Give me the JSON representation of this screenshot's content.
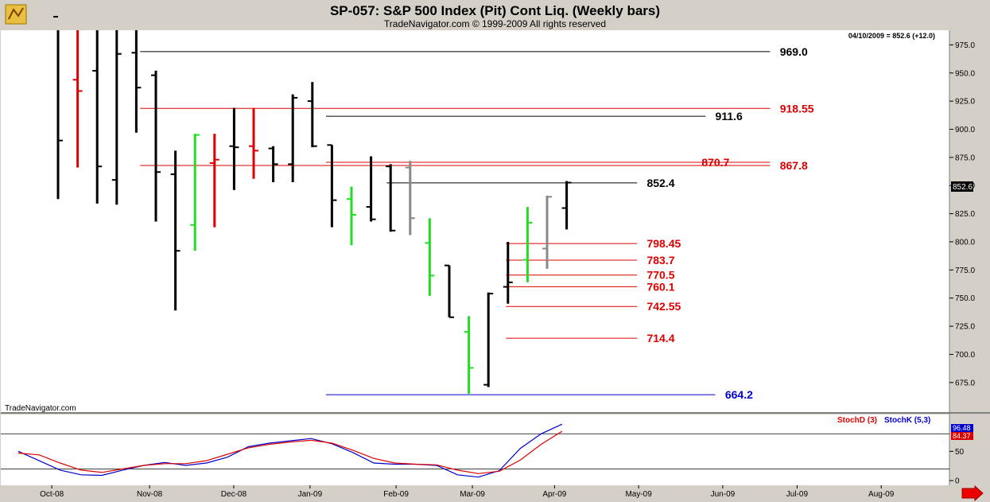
{
  "header": {
    "title": "SP-057:  S&P 500 Index (Pit) Cont Liq.  (Weekly bars)",
    "subtitle": "TradeNavigator.com © 1999-2009 All rights reserved"
  },
  "info_readout": "04/10/2009 = 852.6 (+12.0)",
  "watermark": "TradeNavigator.com",
  "last_price_tag": "852.6",
  "colors": {
    "up_bar": "#22dd22",
    "down_bar": "#e00000",
    "gray_bar": "#888888",
    "normal_bar": "#000000",
    "support_red": "#dd0000",
    "support_blue": "#0000cc",
    "stoch_d": "#dd0000",
    "stoch_k": "#0000cc"
  },
  "chart_data": [
    {
      "type": "ohlc",
      "title": "SP-057:  S&P 500 Index (Pit) Cont Liq.  (Weekly bars)",
      "ylim": [
        648,
        988
      ],
      "yticks": [
        675,
        700,
        725,
        750,
        775,
        800,
        825,
        850,
        875,
        900,
        925,
        950,
        975
      ],
      "ytick_labels": [
        "675.0",
        "700.0",
        "725.0",
        "750.0",
        "775.0",
        "800.0",
        "825.0",
        "850.0",
        "875.0",
        "900.0",
        "925.0",
        "950.0",
        "975.0"
      ],
      "xticks": [
        {
          "label": "Oct-08",
          "bar": 0.9
        },
        {
          "label": "Nov-08",
          "bar": 5.9
        },
        {
          "label": "Dec-08",
          "bar": 10.2
        },
        {
          "label": "Jan-09",
          "bar": 14.1
        },
        {
          "label": "Feb-09",
          "bar": 18.5
        },
        {
          "label": "Mar-09",
          "bar": 22.4
        },
        {
          "label": "Apr-09",
          "bar": 26.6
        },
        {
          "label": "May-09",
          "bar": 30.9
        },
        {
          "label": "Jun-09",
          "bar": 35.2
        },
        {
          "label": "Jul-09",
          "bar": 39.0
        },
        {
          "label": "Aug-09",
          "bar": 43.3
        }
      ],
      "bars": [
        {
          "h": 1000,
          "l": 838,
          "o": 1000,
          "c": 890,
          "color": "normal"
        },
        {
          "h": 1000,
          "l": 866,
          "o": 944,
          "c": 934,
          "color": "down"
        },
        {
          "h": 1000,
          "l": 834,
          "o": 952,
          "c": 867,
          "color": "normal"
        },
        {
          "h": 1000,
          "l": 833,
          "o": 855,
          "c": 967,
          "color": "normal"
        },
        {
          "h": 1000,
          "l": 897,
          "o": 968,
          "c": 937,
          "color": "normal"
        },
        {
          "h": 952,
          "l": 818,
          "o": 948,
          "c": 862,
          "color": "normal"
        },
        {
          "h": 881,
          "l": 739,
          "o": 860,
          "c": 792,
          "color": "normal"
        },
        {
          "h": 896,
          "l": 792,
          "o": 815,
          "c": 895,
          "color": "up"
        },
        {
          "h": 896,
          "l": 813,
          "o": 870,
          "c": 873,
          "color": "down"
        },
        {
          "h": 919,
          "l": 846,
          "o": 885,
          "c": 884,
          "color": "normal"
        },
        {
          "h": 919,
          "l": 856,
          "o": 885,
          "c": 881,
          "color": "down"
        },
        {
          "h": 885,
          "l": 853,
          "o": 883,
          "c": 869,
          "color": "normal"
        },
        {
          "h": 931,
          "l": 853,
          "o": 869,
          "c": 928,
          "color": "normal"
        },
        {
          "h": 942,
          "l": 884,
          "o": 925,
          "c": 885,
          "color": "normal"
        },
        {
          "h": 886,
          "l": 813,
          "o": 886,
          "c": 837,
          "color": "normal"
        },
        {
          "h": 849,
          "l": 797,
          "o": 838,
          "c": 824,
          "color": "up"
        },
        {
          "h": 876,
          "l": 818,
          "o": 831,
          "c": 820,
          "color": "normal"
        },
        {
          "h": 869,
          "l": 809,
          "o": 867,
          "c": 810,
          "color": "normal"
        },
        {
          "h": 872,
          "l": 806,
          "o": 866,
          "c": 821,
          "color": "gray"
        },
        {
          "h": 821,
          "l": 752,
          "o": 799,
          "c": 770,
          "color": "up"
        },
        {
          "h": 779,
          "l": 733,
          "o": 779,
          "c": 733,
          "color": "normal"
        },
        {
          "h": 734,
          "l": 665,
          "o": 720,
          "c": 688,
          "color": "up"
        },
        {
          "h": 755,
          "l": 671,
          "o": 673,
          "c": 754,
          "color": "normal"
        },
        {
          "h": 800,
          "l": 745,
          "o": 760,
          "c": 764,
          "color": "normal"
        },
        {
          "h": 831,
          "l": 764,
          "o": 784,
          "c": 817,
          "color": "up"
        },
        {
          "h": 841,
          "l": 776,
          "o": 794,
          "c": 840,
          "color": "gray"
        },
        {
          "h": 854,
          "l": 811,
          "o": 830,
          "c": 852.6,
          "color": "normal"
        }
      ],
      "levels": [
        {
          "value": 969.0,
          "label": "969.0",
          "color": "#000000",
          "from_bar": 4.2,
          "to_bar": 36.4,
          "label_bar": 36.9
        },
        {
          "value": 918.55,
          "label": "918.55",
          "color": "#dd0000",
          "from_bar": 4.2,
          "to_bar": 36.4,
          "label_bar": 36.9
        },
        {
          "value": 911.6,
          "label": "911.6",
          "color": "#000000",
          "from_bar": 13.7,
          "to_bar": 33.1,
          "label_bar": 33.6
        },
        {
          "value": 870.7,
          "label": "870.7",
          "color": "#dd0000",
          "from_bar": 13.7,
          "to_bar": 36.4,
          "label_bar": 32.9
        },
        {
          "value": 867.8,
          "label": "867.8",
          "color": "#dd0000",
          "from_bar": 4.2,
          "to_bar": 36.4,
          "label_bar": 36.9
        },
        {
          "value": 852.4,
          "label": "852.4",
          "color": "#000000",
          "from_bar": 16.8,
          "to_bar": 29.6,
          "label_bar": 30.1
        },
        {
          "value": 798.45,
          "label": "798.45",
          "color": "#dd0000",
          "from_bar": 22.9,
          "to_bar": 29.6,
          "label_bar": 30.1
        },
        {
          "value": 783.7,
          "label": "783.7",
          "color": "#dd0000",
          "from_bar": 22.9,
          "to_bar": 29.6,
          "label_bar": 30.1
        },
        {
          "value": 770.5,
          "label": "770.5",
          "color": "#dd0000",
          "from_bar": 22.9,
          "to_bar": 29.6,
          "label_bar": 30.1
        },
        {
          "value": 760.1,
          "label": "760.1",
          "color": "#dd0000",
          "from_bar": 22.9,
          "to_bar": 29.6,
          "label_bar": 30.1
        },
        {
          "value": 742.55,
          "label": "742.55",
          "color": "#dd0000",
          "from_bar": 22.9,
          "to_bar": 29.6,
          "label_bar": 30.1
        },
        {
          "value": 714.4,
          "label": "714.4",
          "color": "#dd0000",
          "from_bar": 22.9,
          "to_bar": 29.6,
          "label_bar": 30.1
        },
        {
          "value": 664.2,
          "label": "664.2",
          "color": "#0000cc",
          "from_bar": 13.7,
          "to_bar": 33.6,
          "label_bar": 34.1
        }
      ]
    },
    {
      "type": "line",
      "legend": [
        "StochD (3)",
        "StochK (5,3)"
      ],
      "ylim": [
        -8,
        113
      ],
      "yticks": [
        0,
        50
      ],
      "ytick_labels": [
        "0",
        "50"
      ],
      "reference_lines": [
        20,
        80
      ],
      "last_values": {
        "StochK": "96.48",
        "StochD": "84.37"
      },
      "series": [
        {
          "name": "StochK (5,3)",
          "color": "#0000cc",
          "values": [
            50,
            34,
            18,
            10,
            9,
            18,
            26,
            31,
            26,
            30,
            40,
            58,
            64,
            68,
            72,
            63,
            48,
            30,
            28,
            28,
            26,
            10,
            6,
            17,
            55,
            80,
            96.48
          ]
        },
        {
          "name": "StochD (3)",
          "color": "#dd0000",
          "values": [
            47,
            44,
            30,
            18,
            14,
            20,
            26,
            29,
            29,
            34,
            45,
            56,
            62,
            66,
            69,
            64,
            52,
            38,
            30,
            28,
            27,
            18,
            12,
            16,
            35,
            62,
            84.37
          ]
        }
      ]
    }
  ]
}
